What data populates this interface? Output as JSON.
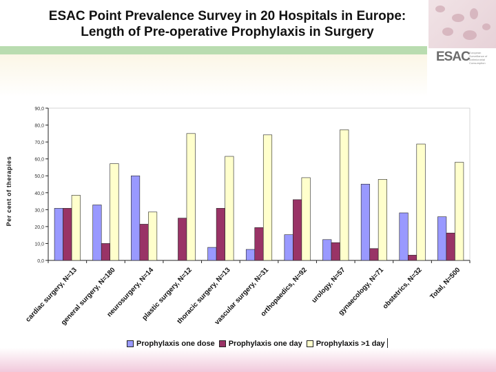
{
  "header": {
    "title_line1": "ESAC Point Prevalence Survey in 20 Hospitals in Europe:",
    "title_line2": "Length of Pre-operative Prophylaxis in Surgery",
    "logo_text": "ESAC",
    "logo_caption": "European Surveillance of Antimicrobial Consumption"
  },
  "chart_data": {
    "type": "bar",
    "title": "",
    "xlabel": "",
    "ylabel": "Per cent of therapies",
    "ylim": [
      0,
      90
    ],
    "yticks": [
      "0,0",
      "10,0",
      "20,0",
      "30,0",
      "40,0",
      "50,0",
      "60,0",
      "70,0",
      "80,0",
      "90,0"
    ],
    "grid": false,
    "legend_position": "bottom",
    "categories": [
      "cardiac surgery, N=13",
      "general surgery, N=180",
      "neurosurgery, N=14",
      "plastic surgery, N=12",
      "thoracic surgery, N=13",
      "vascular surgery, N=31",
      "orthopaedics, N=92",
      "urology, N=57",
      "gynaecology, N=71",
      "obstetrics, N=32",
      "Total, N=500"
    ],
    "series": [
      {
        "name": "Prophylaxis one dose",
        "color": "#9999ff",
        "values": [
          30.8,
          32.8,
          50.0,
          0.0,
          7.7,
          6.5,
          15.2,
          12.3,
          45.1,
          28.1,
          25.8
        ]
      },
      {
        "name": "Prophylaxis one day",
        "color": "#993366",
        "values": [
          30.8,
          10.0,
          21.4,
          25.0,
          30.8,
          19.4,
          35.9,
          10.5,
          7.0,
          3.1,
          16.2
        ]
      },
      {
        "name": "Prophylaxis >1 day",
        "color": "#ffffcc",
        "values": [
          38.5,
          57.2,
          28.6,
          75.0,
          61.5,
          74.2,
          48.9,
          77.2,
          47.9,
          68.8,
          58.0
        ]
      }
    ]
  }
}
